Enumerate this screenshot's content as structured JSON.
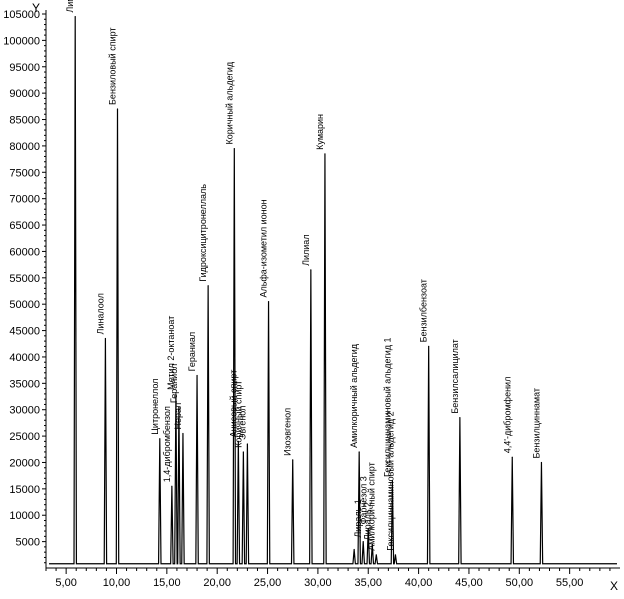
{
  "chart_data": {
    "type": "line",
    "xlabel": "X",
    "ylabel": "Y",
    "xlim": [
      3.0,
      60.0
    ],
    "ylim": [
      0,
      105000
    ],
    "x_ticks": [
      "5,00",
      "10,00",
      "15,00",
      "20,00",
      "25,00",
      "30,00",
      "35,00",
      "40,00",
      "45,00",
      "50,00",
      "55,00"
    ],
    "y_ticks": [
      "5000",
      "10000",
      "15000",
      "20000",
      "25000",
      "30000",
      "35000",
      "40000",
      "45000",
      "50000",
      "55000",
      "60000",
      "65000",
      "70000",
      "75000",
      "80000",
      "85000",
      "90000",
      "95000",
      "100000",
      "105000"
    ],
    "grid": false,
    "baseline": 800,
    "series": [
      {
        "values": [
          {
            "x": 5.9,
            "y": 104500,
            "label": "Лимонен"
          },
          {
            "x": 8.9,
            "y": 43500,
            "label": "Линалоол"
          },
          {
            "x": 10.1,
            "y": 87000,
            "label": "Бензиловый спирт"
          },
          {
            "x": 14.3,
            "y": 24500,
            "label": "Цитронеллол"
          },
          {
            "x": 15.5,
            "y": 15500,
            "label": "1,4-дибромбензол"
          },
          {
            "x": 15.9,
            "y": 33000,
            "label": "Метил 2-октаноат"
          },
          {
            "x": 16.2,
            "y": 30500,
            "label": "Гераниол"
          },
          {
            "x": 16.6,
            "y": 25500,
            "label": "Нерал"
          },
          {
            "x": 18.0,
            "y": 36500,
            "label": "Гераниал"
          },
          {
            "x": 19.1,
            "y": 53500,
            "label": "Гидроксицитронеллаль"
          },
          {
            "x": 21.7,
            "y": 79500,
            "label": "Коричный альдегид"
          },
          {
            "x": 22.1,
            "y": 24000,
            "label": "Анисовый спирт"
          },
          {
            "x": 22.6,
            "y": 22000,
            "label": "Коричный спирт"
          },
          {
            "x": 23.0,
            "y": 23500,
            "label": "Эвгенол"
          },
          {
            "x": 25.1,
            "y": 50500,
            "label": "Альфа-изометил ионон"
          },
          {
            "x": 27.5,
            "y": 20500,
            "label": "Изоэвгенол"
          },
          {
            "x": 29.3,
            "y": 56500,
            "label": "Лилиал"
          },
          {
            "x": 30.7,
            "y": 78500,
            "label": "Кумарин"
          },
          {
            "x": 33.6,
            "y": 3500,
            "label": ""
          },
          {
            "x": 34.1,
            "y": 22000,
            "label": "Амилкоричный альдегид"
          },
          {
            "x": 34.5,
            "y": 5000,
            "label": "Лираль 1"
          },
          {
            "x": 35.0,
            "y": 7500,
            "label": "Фарнезол 3"
          },
          {
            "x": 35.4,
            "y": 4500,
            "label": "Лираль 2"
          },
          {
            "x": 35.8,
            "y": 2500,
            "label": "Амилкоричный спирт"
          },
          {
            "x": 37.4,
            "y": 16500,
            "label": "Гексилциннаминовый альдегид 1"
          },
          {
            "x": 37.7,
            "y": 2500,
            "label": "Гексилциннаминовый альдегид 2"
          },
          {
            "x": 41.0,
            "y": 42000,
            "label": "Бензилбензоат"
          },
          {
            "x": 44.1,
            "y": 28500,
            "label": "Бензилсалицилат"
          },
          {
            "x": 49.3,
            "y": 21000,
            "label": "4,4'-дибромфенил"
          },
          {
            "x": 52.2,
            "y": 20000,
            "label": "Бензилциннамат"
          }
        ]
      }
    ]
  }
}
